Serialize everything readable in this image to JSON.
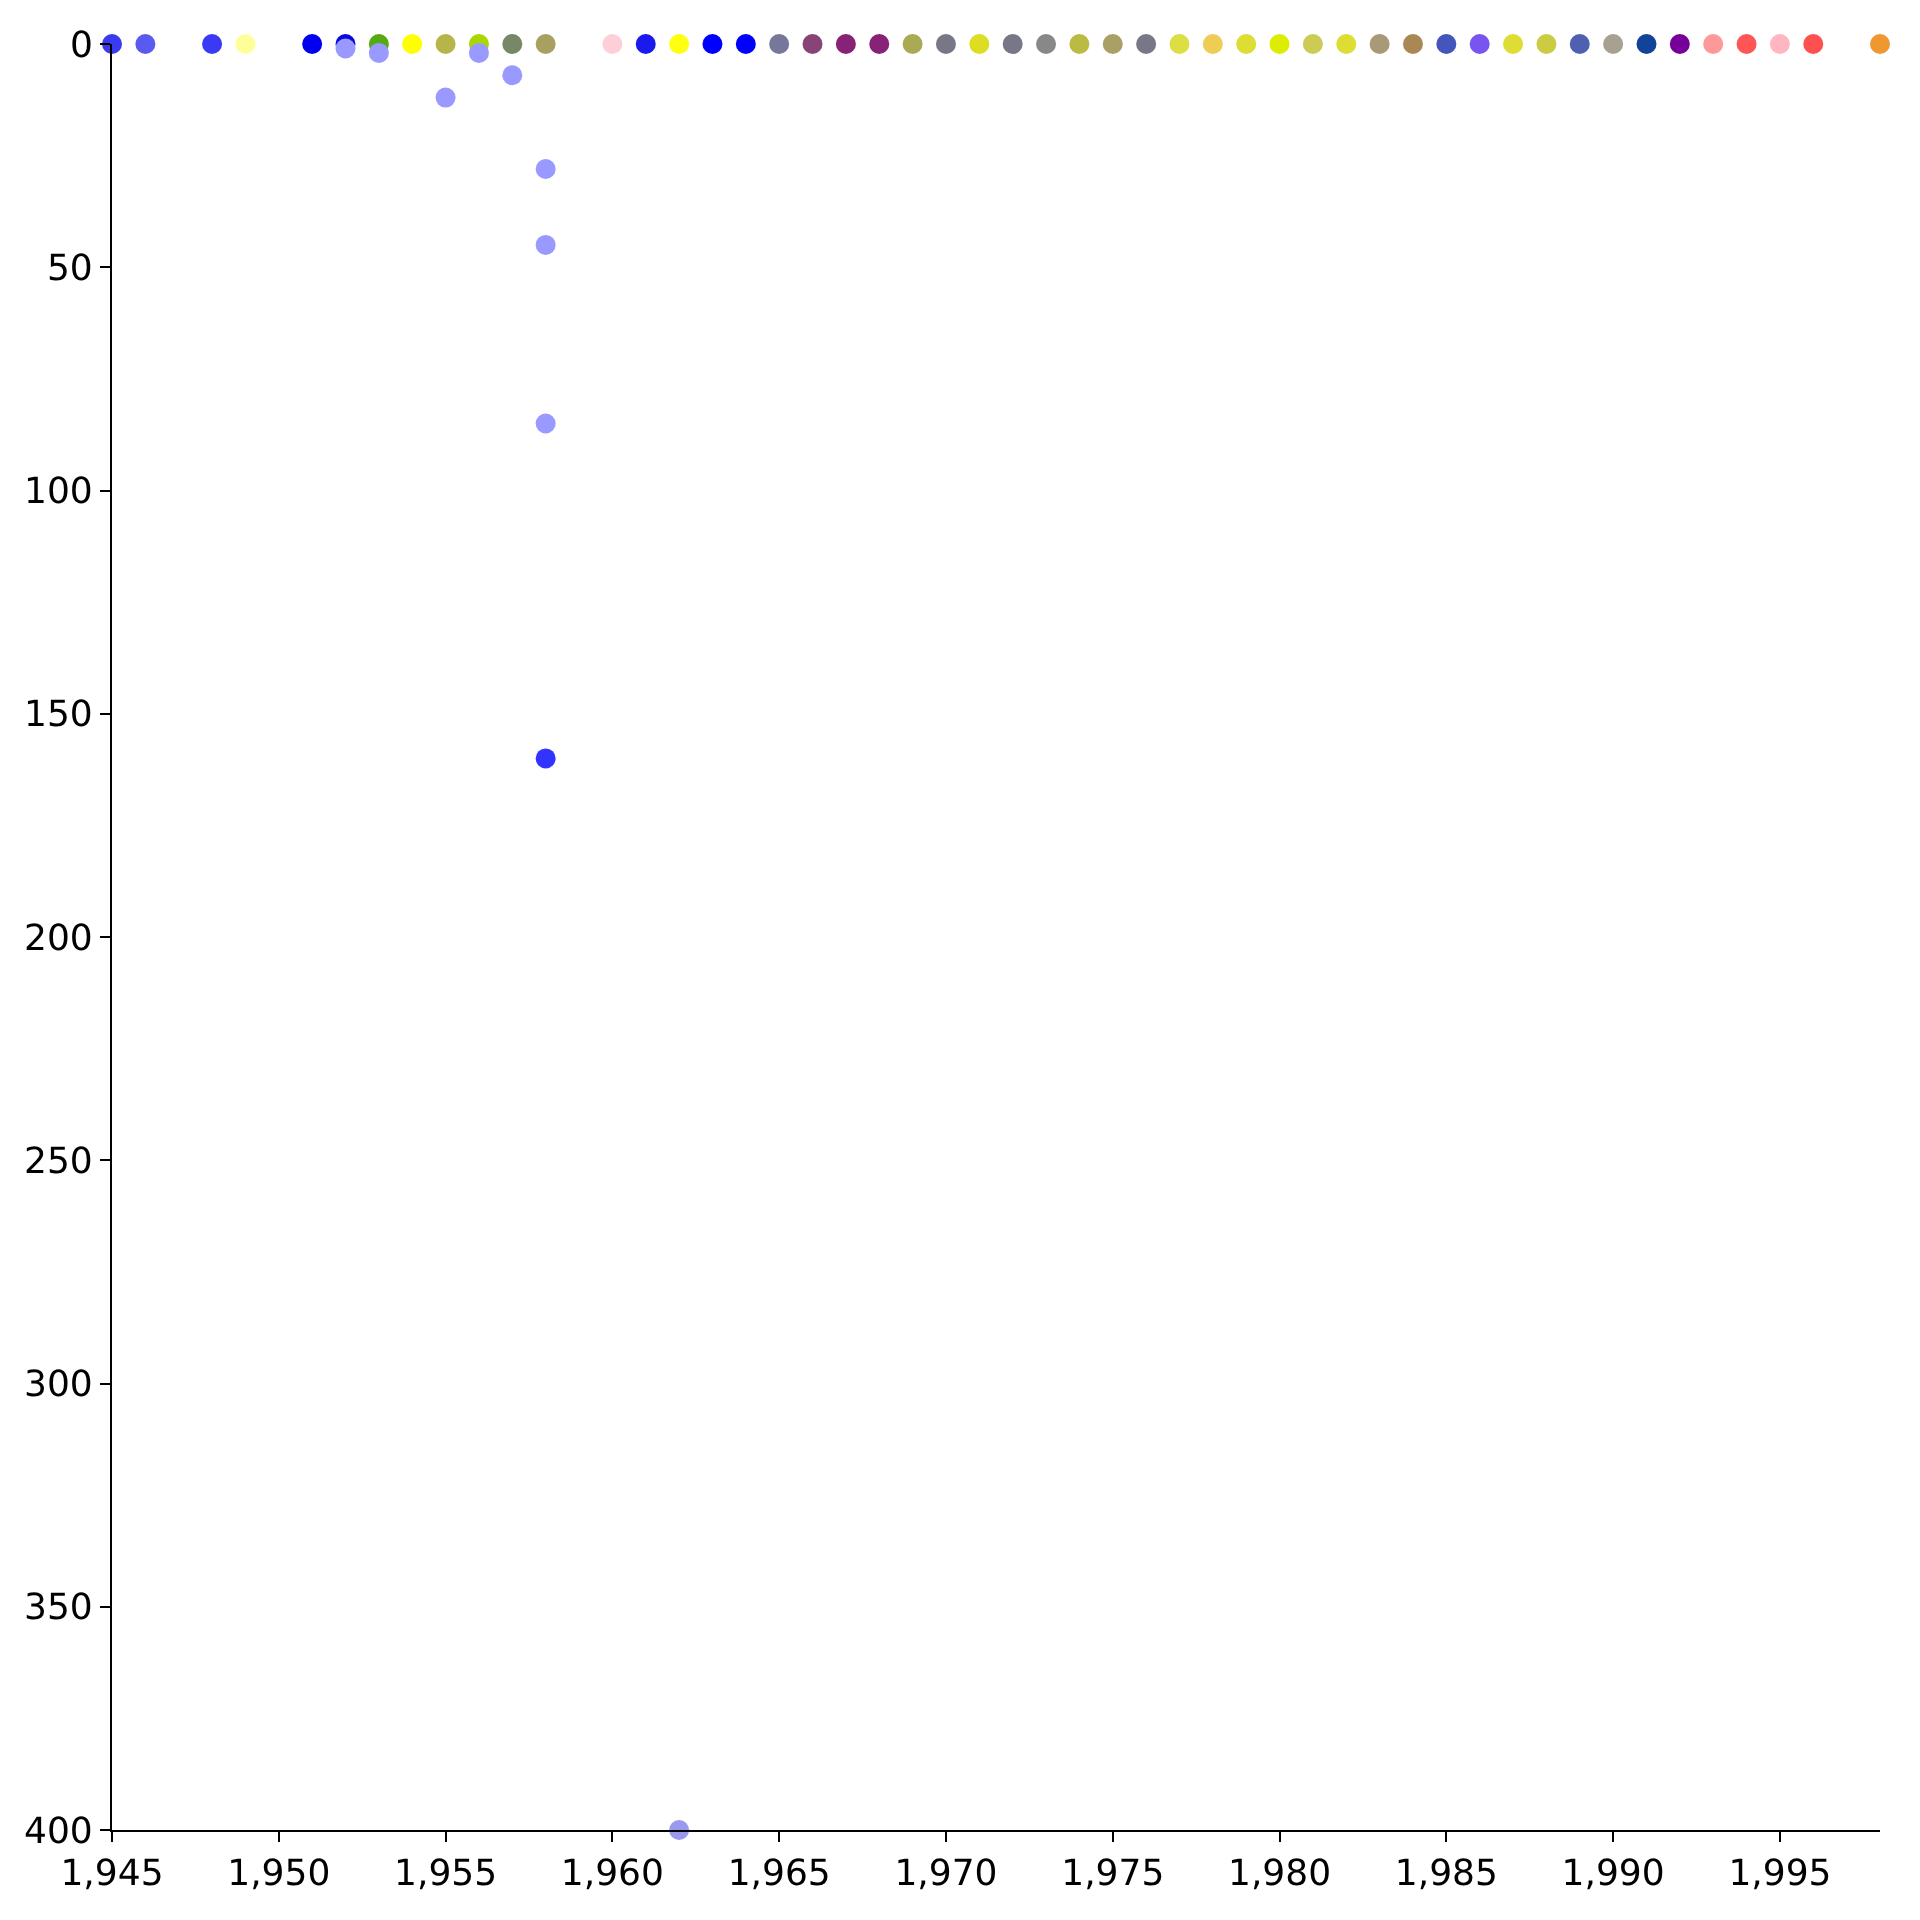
{
  "chart_data": {
    "type": "scatter",
    "x": [
      1945,
      1946,
      1948,
      1949,
      1951,
      1952,
      1953,
      1954,
      1955,
      1956,
      1957,
      1958,
      1960,
      1961,
      1962,
      1963,
      1964,
      1965,
      1966,
      1967,
      1968,
      1969,
      1970,
      1971,
      1972,
      1973,
      1974,
      1975,
      1976,
      1977,
      1978,
      1979,
      1980,
      1981,
      1982,
      1983,
      1984,
      1985,
      1986,
      1987,
      1988,
      1989,
      1990,
      1991,
      1992,
      1993,
      1994,
      1995,
      1996,
      1998,
      1952,
      1953,
      1955,
      1956,
      1957,
      1958,
      1958,
      1958,
      1958,
      1962
    ],
    "values": [
      0,
      0,
      0,
      0,
      0,
      0,
      0,
      0,
      0,
      0,
      0,
      0,
      0,
      0,
      0,
      0,
      0,
      0,
      0,
      0,
      0,
      0,
      0,
      0,
      0,
      0,
      0,
      0,
      0,
      0,
      0,
      0,
      0,
      0,
      0,
      0,
      0,
      0,
      0,
      0,
      0,
      0,
      0,
      0,
      0,
      0,
      0,
      0,
      0,
      0,
      1,
      2,
      12,
      2,
      7,
      28,
      45,
      85,
      160,
      400
    ],
    "colors": [
      "#3a3aee",
      "#5a5af0",
      "#3a3af5",
      "#ffff99",
      "#0000ee",
      "#0a0ae0",
      "#55aa11",
      "#ffff00",
      "#b5b54a",
      "#a8d800",
      "#778866",
      "#a8a060",
      "#ffcfd8",
      "#1a1aee",
      "#ffff11",
      "#0000ff",
      "#0000ff",
      "#777799",
      "#884477",
      "#882277",
      "#882277",
      "#aaaa55",
      "#777788",
      "#dddd22",
      "#777788",
      "#888888",
      "#bbbb44",
      "#aaa066",
      "#777788",
      "#dddd44",
      "#eecc55",
      "#dddd33",
      "#dded00",
      "#cccc55",
      "#dddd33",
      "#aa9977",
      "#aa8855",
      "#4455bb",
      "#7755ee",
      "#dddd33",
      "#cccc44",
      "#5060b0",
      "#a8a090",
      "#114499",
      "#770099",
      "#ff9999",
      "#ff5555",
      "#ffb6c1",
      "#ff5050",
      "#f09830",
      "#9999ff",
      "#9999ff",
      "#9999ff",
      "#9999ff",
      "#9999ff",
      "#9999ff",
      "#9999ff",
      "#9999ff",
      "#3333ff",
      "#9999ee"
    ],
    "xlim": [
      1945,
      1998
    ],
    "xticks": [
      {
        "value": 1945,
        "label": "1,945"
      },
      {
        "value": 1950,
        "label": "1,950"
      },
      {
        "value": 1955,
        "label": "1,955"
      },
      {
        "value": 1960,
        "label": "1,960"
      },
      {
        "value": 1965,
        "label": "1,965"
      },
      {
        "value": 1970,
        "label": "1,970"
      },
      {
        "value": 1975,
        "label": "1,975"
      },
      {
        "value": 1980,
        "label": "1,980"
      },
      {
        "value": 1985,
        "label": "1,985"
      },
      {
        "value": 1990,
        "label": "1,990"
      },
      {
        "value": 1995,
        "label": "1,995"
      }
    ],
    "ylim": [
      400,
      0
    ],
    "yticks": [
      0,
      50,
      100,
      150,
      200,
      250,
      300,
      350,
      400
    ],
    "marker": "circle"
  }
}
